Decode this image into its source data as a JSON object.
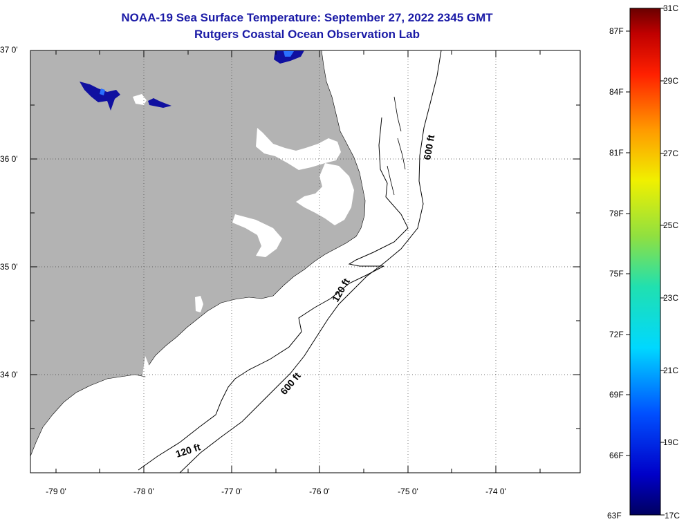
{
  "title": {
    "line1": "NOAA-19 Sea Surface Temperature:  September 27, 2022 2345 GMT",
    "line2": "Rutgers Coastal Ocean Observation Lab"
  },
  "map": {
    "lat_labels": [
      "37 0'",
      "36 0'",
      "35 0'",
      "34 0'"
    ],
    "lon_labels": [
      "-79 0'",
      "-78 0'",
      "-77 0'",
      "-76 0'",
      "-75 0'",
      "-74 0'"
    ],
    "contour_labels": {
      "shelf_120_mid": "120 ft",
      "shelf_120_south": "120 ft",
      "slope_600_north": "600 ft",
      "slope_600_south": "600 ft"
    },
    "colors": {
      "land": "#b3b3b3",
      "water_no_data": "#ffffff",
      "cold_water": "#1010a0",
      "contour": "#000000"
    }
  },
  "colorbar": {
    "f_labels": [
      "87F",
      "84F",
      "81F",
      "78F",
      "75F",
      "72F",
      "69F",
      "66F",
      "63F"
    ],
    "c_labels": [
      "31C",
      "29C",
      "27C",
      "25C",
      "23C",
      "21C",
      "19C",
      "17C"
    ],
    "range_c": [
      17,
      31
    ],
    "range_f": [
      63,
      88
    ]
  }
}
